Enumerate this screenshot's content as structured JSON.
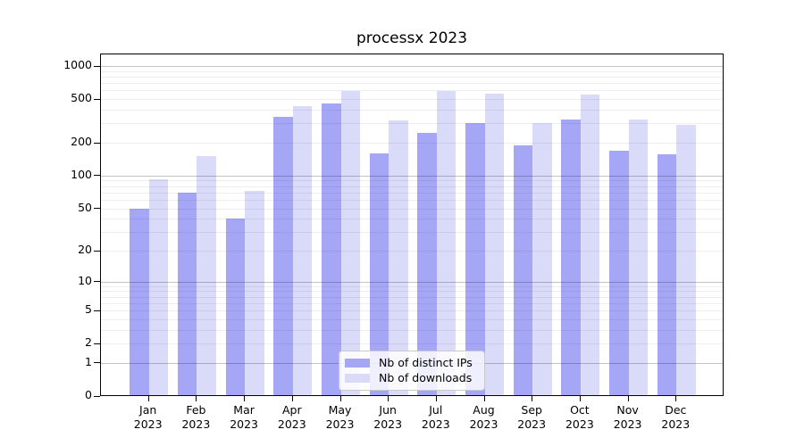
{
  "chart_data": {
    "type": "bar",
    "title": "processx 2023",
    "categories": [
      "Jan",
      "Feb",
      "Mar",
      "Apr",
      "May",
      "Jun",
      "Jul",
      "Aug",
      "Sep",
      "Oct",
      "Nov",
      "Dec"
    ],
    "year": "2023",
    "series": [
      {
        "name": "Nb of distinct IPs",
        "color": "#a6a6f7",
        "values": [
          50,
          70,
          40,
          346,
          459,
          160,
          247,
          304,
          188,
          326,
          168,
          156
        ]
      },
      {
        "name": "Nb of downloads",
        "color": "#dadaf9",
        "values": [
          92,
          150,
          72,
          429,
          589,
          318,
          596,
          560,
          304,
          547,
          325,
          289
        ]
      }
    ],
    "yscale": "log1p",
    "ylim": [
      0,
      1300
    ],
    "grid": true,
    "legend_position": "bottom-center-inside",
    "y_ticks": [
      {
        "label": "1000",
        "value": 1000,
        "major": true
      },
      {
        "label": "500",
        "value": 500,
        "major": false
      },
      {
        "label": "200",
        "value": 200,
        "major": false
      },
      {
        "label": "100",
        "value": 100,
        "major": true
      },
      {
        "label": "50",
        "value": 50,
        "major": false
      },
      {
        "label": "20",
        "value": 20,
        "major": false
      },
      {
        "label": "10",
        "value": 10,
        "major": true
      },
      {
        "label": "5",
        "value": 5,
        "major": false
      },
      {
        "label": "2",
        "value": 2,
        "major": false
      },
      {
        "label": "1",
        "value": 1,
        "major": true
      },
      {
        "label": "0",
        "value": 0,
        "major": true
      }
    ]
  }
}
